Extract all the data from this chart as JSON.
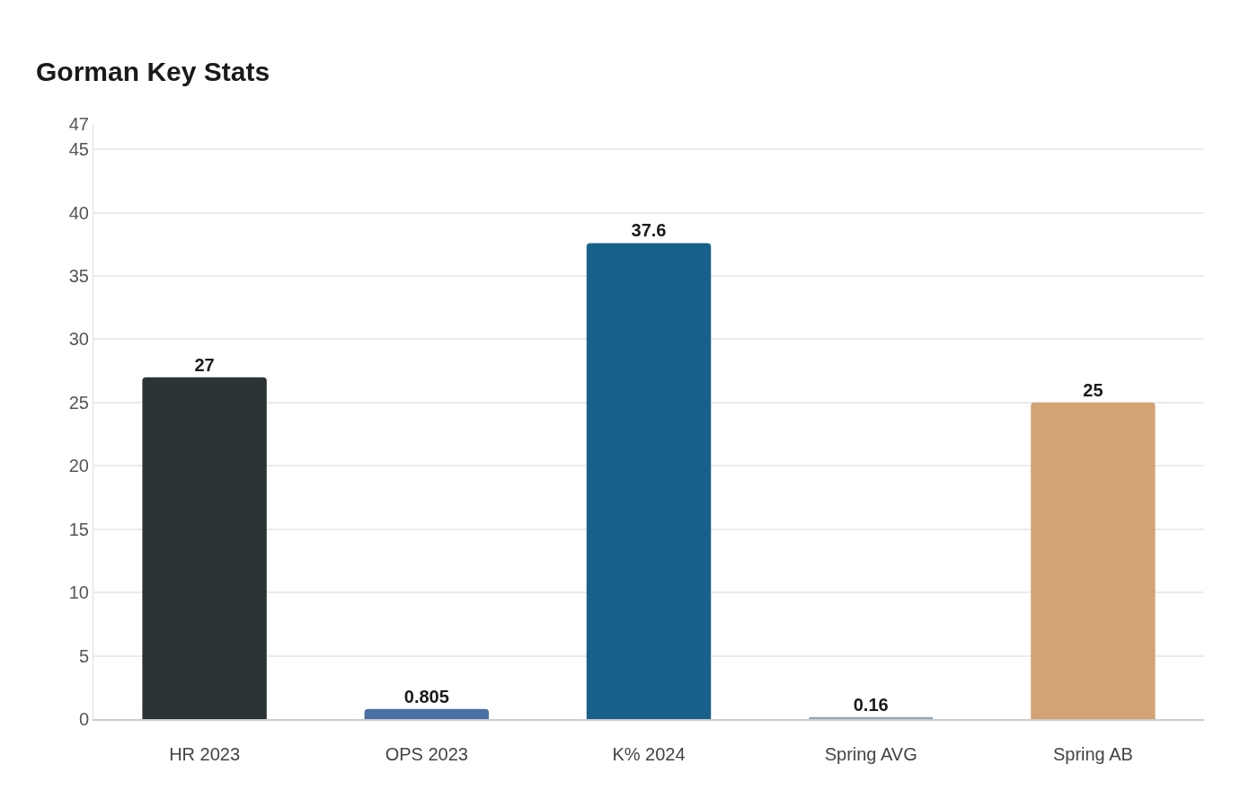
{
  "chart_data": {
    "type": "bar",
    "title": "Gorman Key Stats",
    "categories": [
      "HR 2023",
      "OPS 2023",
      "K% 2024",
      "Spring AVG",
      "Spring AB"
    ],
    "values": [
      27,
      0.805,
      37.6,
      0.16,
      25
    ],
    "colors": [
      "#2d3436",
      "#4a6fa5",
      "#17618a",
      "#95a5b5",
      "#d4a373"
    ],
    "data_labels": true,
    "ylim": [
      0,
      47
    ],
    "yticks": [
      0,
      5,
      10,
      15,
      20,
      25,
      30,
      35,
      40,
      45,
      47
    ],
    "grid": "y"
  }
}
